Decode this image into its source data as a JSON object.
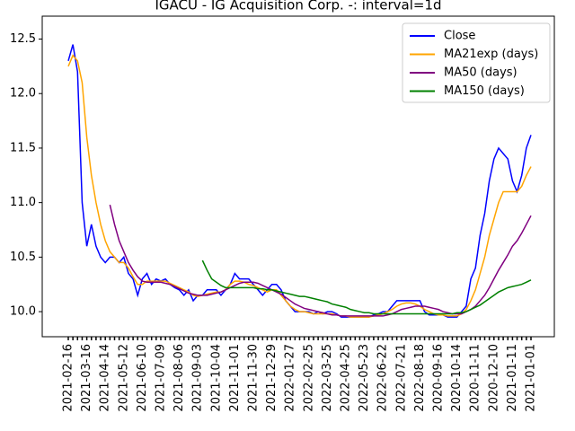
{
  "chart_data": {
    "type": "line",
    "title": "IGACU - IG Acquisition Corp. -: interval=1d",
    "categories": [
      "2021-02-16",
      null,
      null,
      null,
      "2021-03-16",
      null,
      null,
      null,
      "2021-04-14",
      null,
      null,
      null,
      "2021-05-12",
      null,
      null,
      null,
      "2021-06-10",
      null,
      null,
      null,
      "2021-07-09",
      null,
      null,
      null,
      "2021-08-06",
      null,
      null,
      null,
      "2021-09-03",
      null,
      null,
      null,
      "2021-10-04",
      null,
      null,
      null,
      "2021-11-01",
      null,
      null,
      null,
      "2021-11-30",
      null,
      null,
      null,
      "2021-12-29",
      null,
      null,
      null,
      "2022-01-27",
      null,
      null,
      null,
      "2022-02-25",
      null,
      null,
      null,
      "2022-03-25",
      null,
      null,
      null,
      "2022-04-25",
      null,
      null,
      null,
      "2022-05-23",
      null,
      null,
      null,
      "2022-06-22",
      null,
      null,
      null,
      "2022-07-21",
      null,
      null,
      null,
      "2022-08-18",
      null,
      null,
      null,
      "2020-09-16",
      null,
      null,
      null,
      "2020-10-14",
      null,
      null,
      null,
      "2020-11-11",
      null,
      null,
      null,
      "2020-12-10",
      null,
      null,
      null,
      "2021-01-11",
      null,
      null,
      null,
      "2021-01-01"
    ],
    "series": [
      {
        "name": "Close",
        "color": "#0000ff",
        "values": [
          12.3,
          12.45,
          12.2,
          11.0,
          10.6,
          10.8,
          10.6,
          10.5,
          10.45,
          10.5,
          10.5,
          10.45,
          10.5,
          10.35,
          10.3,
          10.15,
          10.3,
          10.35,
          10.25,
          10.3,
          10.28,
          10.3,
          10.25,
          10.22,
          10.2,
          10.15,
          10.2,
          10.1,
          10.15,
          10.15,
          10.2,
          10.2,
          10.2,
          10.15,
          10.2,
          10.25,
          10.35,
          10.3,
          10.3,
          10.3,
          10.25,
          10.2,
          10.15,
          10.2,
          10.25,
          10.25,
          10.2,
          10.1,
          10.05,
          10.0,
          10.0,
          10.0,
          10.0,
          9.98,
          10.0,
          9.98,
          10.0,
          10.0,
          9.98,
          9.95,
          9.95,
          9.95,
          9.95,
          9.95,
          9.95,
          9.95,
          9.97,
          9.98,
          10.0,
          10.0,
          10.05,
          10.1,
          10.1,
          10.1,
          10.1,
          10.1,
          10.1,
          10.0,
          9.97,
          9.97,
          9.97,
          9.97,
          9.95,
          9.95,
          9.95,
          10.0,
          10.05,
          10.3,
          10.4,
          10.7,
          10.9,
          11.2,
          11.4,
          11.5,
          11.45,
          11.4,
          11.2,
          11.1,
          11.25,
          11.5,
          11.62
        ]
      },
      {
        "name": "MA21exp (days)",
        "color": "#ffa500",
        "values": [
          12.25,
          12.35,
          12.3,
          12.1,
          11.6,
          11.25,
          11.0,
          10.8,
          10.65,
          10.55,
          10.5,
          10.45,
          10.45,
          10.4,
          10.32,
          10.25,
          10.25,
          10.28,
          10.28,
          10.28,
          10.28,
          10.28,
          10.26,
          10.24,
          10.22,
          10.2,
          10.18,
          10.15,
          10.14,
          10.15,
          10.16,
          10.17,
          10.18,
          10.18,
          10.2,
          10.25,
          10.28,
          10.28,
          10.27,
          10.25,
          10.24,
          10.22,
          10.2,
          10.18,
          10.2,
          10.2,
          10.15,
          10.1,
          10.05,
          10.02,
          10.0,
          10.0,
          9.99,
          9.98,
          9.98,
          9.98,
          9.98,
          9.98,
          9.97,
          9.96,
          9.96,
          9.95,
          9.95,
          9.95,
          9.95,
          9.95,
          9.96,
          9.97,
          9.98,
          10.0,
          10.02,
          10.05,
          10.07,
          10.08,
          10.08,
          10.07,
          10.05,
          10.02,
          10.0,
          9.98,
          9.97,
          9.97,
          9.96,
          9.96,
          9.96,
          9.98,
          10.02,
          10.1,
          10.2,
          10.35,
          10.5,
          10.7,
          10.85,
          11.0,
          11.1,
          11.1,
          11.1,
          11.1,
          11.15,
          11.25,
          11.33
        ]
      },
      {
        "name": "MA50 (days)",
        "color": "#800080",
        "values": [
          null,
          null,
          null,
          null,
          null,
          null,
          null,
          null,
          null,
          10.98,
          10.8,
          10.65,
          10.55,
          10.45,
          10.38,
          10.32,
          10.28,
          10.27,
          10.27,
          10.27,
          10.27,
          10.26,
          10.25,
          10.23,
          10.21,
          10.19,
          10.17,
          10.16,
          10.15,
          10.15,
          10.15,
          10.16,
          10.17,
          10.18,
          10.2,
          10.22,
          10.24,
          10.26,
          10.27,
          10.27,
          10.27,
          10.26,
          10.24,
          10.22,
          10.2,
          10.18,
          10.16,
          10.13,
          10.1,
          10.07,
          10.05,
          10.03,
          10.02,
          10.01,
          10.0,
          9.99,
          9.98,
          9.97,
          9.97,
          9.96,
          9.96,
          9.96,
          9.96,
          9.96,
          9.96,
          9.96,
          9.96,
          9.96,
          9.96,
          9.97,
          9.98,
          10.0,
          10.02,
          10.03,
          10.04,
          10.05,
          10.05,
          10.05,
          10.04,
          10.03,
          10.02,
          10.0,
          9.99,
          9.98,
          9.98,
          9.98,
          10.0,
          10.02,
          10.05,
          10.1,
          10.15,
          10.22,
          10.3,
          10.38,
          10.45,
          10.52,
          10.6,
          10.65,
          10.72,
          10.8,
          10.88
        ]
      },
      {
        "name": "MA150 (days)",
        "color": "#008000",
        "values": [
          null,
          null,
          null,
          null,
          null,
          null,
          null,
          null,
          null,
          null,
          null,
          null,
          null,
          null,
          null,
          null,
          null,
          null,
          null,
          null,
          null,
          null,
          null,
          null,
          null,
          null,
          null,
          null,
          null,
          10.47,
          10.38,
          10.3,
          10.27,
          10.24,
          10.22,
          10.22,
          10.22,
          10.22,
          10.22,
          10.22,
          10.22,
          10.21,
          10.21,
          10.2,
          10.2,
          10.19,
          10.18,
          10.17,
          10.16,
          10.15,
          10.14,
          10.14,
          10.13,
          10.12,
          10.11,
          10.1,
          10.09,
          10.07,
          10.06,
          10.05,
          10.04,
          10.02,
          10.01,
          10.0,
          9.99,
          9.99,
          9.98,
          9.98,
          9.98,
          9.98,
          9.98,
          9.98,
          9.98,
          9.98,
          9.98,
          9.98,
          9.98,
          9.98,
          9.98,
          9.98,
          9.98,
          9.98,
          9.98,
          9.98,
          9.99,
          9.99,
          10.0,
          10.02,
          10.04,
          10.06,
          10.09,
          10.12,
          10.15,
          10.18,
          10.2,
          10.22,
          10.23,
          10.24,
          10.25,
          10.27,
          10.29
        ]
      }
    ],
    "ylim": [
      9.77,
      12.71
    ],
    "yticks": [
      {
        "value": 10,
        "label": "10.0"
      },
      10.5,
      {
        "value": 11,
        "label": "11.0"
      },
      11.5,
      {
        "value": 12,
        "label": "12.0"
      },
      12.5
    ],
    "grid": false,
    "legend": "upper right"
  }
}
